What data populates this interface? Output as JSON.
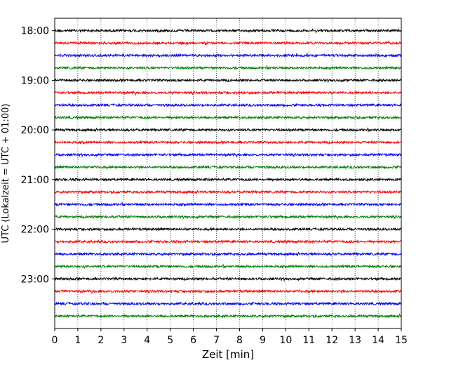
{
  "chart_data": {
    "type": "line",
    "title": "",
    "xlabel": "Zeit  [min]",
    "ylabel": "UTC (Lokalzeit = UTC + 01:00)",
    "xlim": [
      0,
      15
    ],
    "x_ticks": [
      "0",
      "1",
      "2",
      "3",
      "4",
      "5",
      "6",
      "7",
      "8",
      "9",
      "10",
      "11",
      "12",
      "13",
      "14",
      "15"
    ],
    "y_ticks": [
      "18:00",
      "19:00",
      "20:00",
      "21:00",
      "22:00",
      "23:00"
    ],
    "ylim_start": "17:45",
    "ylim_end": "24:00",
    "grid": "vertical dotted",
    "trace_interval_min": 15,
    "trace_start_times": [
      "18:00",
      "18:15",
      "18:30",
      "18:45",
      "19:00",
      "19:15",
      "19:30",
      "19:45",
      "20:00",
      "20:15",
      "20:30",
      "20:45",
      "21:00",
      "21:15",
      "21:30",
      "21:45",
      "22:00",
      "22:15",
      "22:30",
      "22:45",
      "23:00",
      "23:15",
      "23:30",
      "23:45"
    ],
    "trace_colors": [
      "#000000",
      "#ff0000",
      "#0000ff",
      "#008000"
    ],
    "amplitude_note": "low-amplitude seismic noise"
  }
}
